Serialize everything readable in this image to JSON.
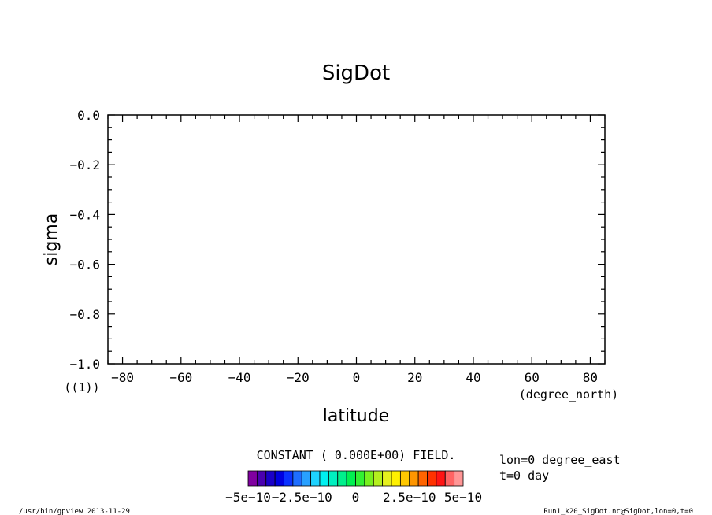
{
  "chart_data": {
    "type": "heatmap",
    "title": "SigDot",
    "xlabel": "latitude",
    "ylabel": "sigma",
    "x_unit": "(degree_north)",
    "x_range": [
      -85,
      85
    ],
    "y_range": [
      -1.0,
      0.0
    ],
    "x_ticks": [
      -80,
      -60,
      -40,
      -20,
      0,
      20,
      40,
      60,
      80
    ],
    "x_tick_labels": [
      "−80",
      "−60",
      "−40",
      "−20",
      "0",
      "20",
      "40",
      "60",
      "80"
    ],
    "y_ticks": [
      0.0,
      -0.2,
      -0.4,
      -0.6,
      -0.8,
      -1.0
    ],
    "y_tick_labels": [
      "0.0",
      "−0.2",
      "−0.4",
      "−0.6",
      "−0.8",
      "−1.0"
    ],
    "field_value": 0.0,
    "colorbar": {
      "colors": [
        "#8000a0",
        "#4a00b0",
        "#1a00c8",
        "#0000e0",
        "#0a32ff",
        "#1e6eff",
        "#28a0ff",
        "#1ed2ff",
        "#00f0f0",
        "#00f0c0",
        "#00f08c",
        "#00f050",
        "#32f032",
        "#78f01e",
        "#b4f01e",
        "#e6f01e",
        "#fff000",
        "#ffc800",
        "#ff9600",
        "#ff6400",
        "#ff3200",
        "#ff1414",
        "#ff6464",
        "#ff9696"
      ],
      "tick_labels": [
        "−5e−10",
        "−2.5e−10",
        "0",
        "2.5e−10",
        "5e−10"
      ]
    }
  },
  "axis_extra_label": "((1))",
  "message": "CONSTANT ( 0.000E+00) FIELD.",
  "info": {
    "lon": "lon=0 degree_east",
    "t": "t=0 day"
  },
  "footer": {
    "left": "/usr/bin/gpview   2013-11-29",
    "right": "Run1_k20_SigDot.nc@SigDot,lon=0,t=0"
  }
}
